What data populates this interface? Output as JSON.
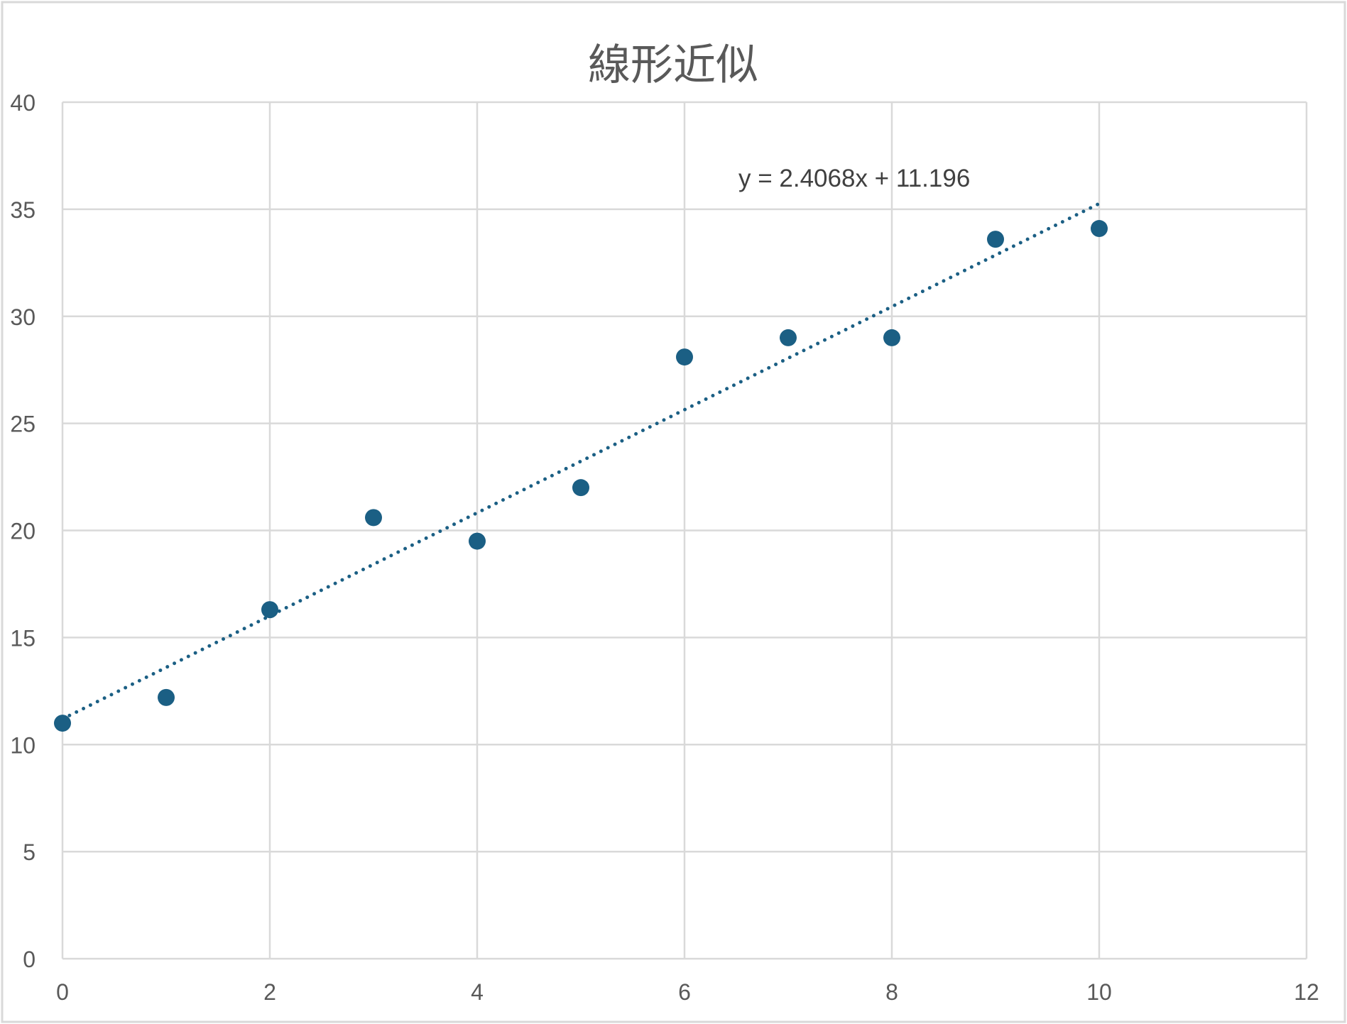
{
  "chart_data": {
    "type": "scatter",
    "title": "線形近似",
    "xlabel": "",
    "ylabel": "",
    "xlim": [
      0,
      12
    ],
    "ylim": [
      0,
      40
    ],
    "x_ticks": [
      0,
      2,
      4,
      6,
      8,
      10,
      12
    ],
    "y_ticks": [
      0,
      5,
      10,
      15,
      20,
      25,
      30,
      35,
      40
    ],
    "grid": true,
    "legend": "none",
    "series": [
      {
        "x": [
          0,
          1,
          2,
          3,
          4,
          5,
          6,
          7,
          8,
          9,
          10
        ],
        "y": [
          11.0,
          12.2,
          16.3,
          20.6,
          19.5,
          22.0,
          28.1,
          29.0,
          29.0,
          33.6,
          34.1
        ],
        "color": "#1b5f84"
      }
    ],
    "trendline": {
      "type": "linear",
      "slope": 2.4068,
      "intercept": 11.196,
      "x_range": [
        0,
        10
      ],
      "style": "dotted",
      "color": "#1b5f84",
      "equation_label": "y = 2.4068x + 11.196"
    },
    "colors": {
      "grid": "#d9d9d9",
      "text": "#595959",
      "frame": "#d9d9d9"
    }
  }
}
